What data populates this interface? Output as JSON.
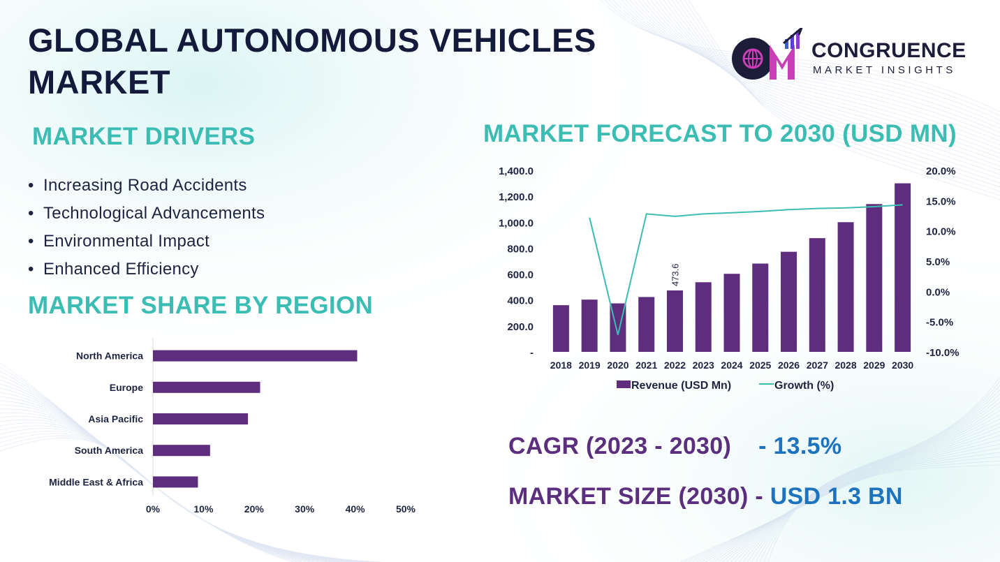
{
  "title": "GLOBAL AUTONOMOUS VEHICLES MARKET",
  "logo": {
    "icon": "congruence-cm-logo",
    "name": "CONGRUENCE",
    "subtitle": "MARKET INSIGHTS"
  },
  "drivers": {
    "heading": "MARKET DRIVERS",
    "items": [
      "Increasing Road Accidents",
      "Technological Advancements",
      "Environmental Impact",
      "Enhanced Efficiency"
    ]
  },
  "region": {
    "heading": "MARKET SHARE BY REGION"
  },
  "forecast": {
    "heading": "MARKET FORECAST TO 2030 (USD MN)"
  },
  "stats": {
    "cagr_label": "CAGR (2023 - 2030)",
    "cagr_value": "- 13.5%",
    "size_label": "MARKET SIZE (2030) - ",
    "size_value": "USD 1.3 BN"
  },
  "colors": {
    "bar": "#5f2d7d",
    "line": "#3cbdb4",
    "heading": "#3cbdb4",
    "stat_label": "#5b2f7d",
    "stat_value": "#1e73be"
  },
  "chart_data": [
    {
      "id": "region",
      "type": "bar",
      "orientation": "horizontal",
      "title": "MARKET SHARE BY REGION",
      "categories": [
        "North America",
        "Europe",
        "Asia Pacific",
        "South America",
        "Middle East & Africa"
      ],
      "values": [
        40.4,
        21.2,
        18.8,
        11.3,
        8.9
      ],
      "xlim": [
        0,
        50
      ],
      "xticks": [
        0,
        10,
        20,
        30,
        40,
        50
      ],
      "xtick_labels": [
        "0%",
        "10%",
        "20%",
        "30%",
        "40%",
        "50%"
      ]
    },
    {
      "id": "forecast",
      "type": "bar",
      "title": "MARKET FORECAST TO 2030 (USD MN)",
      "categories": [
        "2018",
        "2019",
        "2020",
        "2021",
        "2022",
        "2023",
        "2024",
        "2025",
        "2026",
        "2027",
        "2028",
        "2029",
        "2030"
      ],
      "series": [
        {
          "name": "Revenue (USD Mn)",
          "type": "bar",
          "axis": "left",
          "values": [
            360,
            403,
            374,
            423,
            473.6,
            537,
            602,
            681,
            772,
            877,
            1000,
            1140,
            1300
          ]
        },
        {
          "name": "Growth (%)",
          "type": "line",
          "axis": "right",
          "values": [
            null,
            12.2,
            -7.2,
            12.8,
            12.4,
            12.8,
            13.0,
            13.2,
            13.5,
            13.7,
            13.8,
            14.0,
            14.3
          ]
        }
      ],
      "annotations": [
        {
          "category": "2022",
          "label": "473.6"
        }
      ],
      "ylim_left": [
        0,
        1400
      ],
      "yticks_left": [
        0,
        200,
        400,
        600,
        800,
        1000,
        1200,
        1400
      ],
      "ytick_labels_left": [
        "-",
        "200.0",
        "400.0",
        "600.0",
        "800.0",
        "1,000.0",
        "1,200.0",
        "1,400.0"
      ],
      "ylim_right": [
        -10,
        20
      ],
      "yticks_right": [
        -10,
        -5,
        0,
        5,
        10,
        15,
        20
      ],
      "ytick_labels_right": [
        "-10.0%",
        "-5.0%",
        "0.0%",
        "5.0%",
        "10.0%",
        "15.0%",
        "20.0%"
      ],
      "legend_position": "bottom"
    }
  ]
}
